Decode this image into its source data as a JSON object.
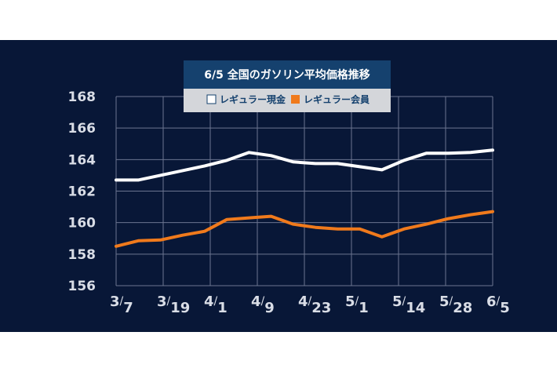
{
  "chart_data": {
    "type": "line",
    "title": "6/5  全国のガソリン平均価格推移",
    "x_labels": [
      "3/7",
      "3/19",
      "4/1",
      "4/9",
      "4/23",
      "5/1",
      "5/14",
      "5/28",
      "6/5"
    ],
    "ylim": [
      156,
      168
    ],
    "yticks": [
      156,
      158,
      160,
      162,
      164,
      166,
      168
    ],
    "grid": true,
    "legend_position": "top-center",
    "series": [
      {
        "name": "レギュラー現金",
        "color": "#ffffff",
        "values": [
          162.7,
          162.7,
          163.0,
          163.3,
          163.6,
          163.95,
          164.45,
          164.25,
          163.85,
          163.75,
          163.75,
          163.55,
          163.35,
          163.95,
          164.4,
          164.4,
          164.45,
          164.6
        ]
      },
      {
        "name": "レギュラー会員",
        "color": "#f07a1c",
        "values": [
          158.5,
          158.85,
          158.9,
          159.2,
          159.45,
          160.2,
          160.3,
          160.4,
          159.9,
          159.7,
          159.6,
          159.6,
          159.1,
          159.6,
          159.9,
          160.25,
          160.5,
          160.7
        ]
      }
    ]
  }
}
